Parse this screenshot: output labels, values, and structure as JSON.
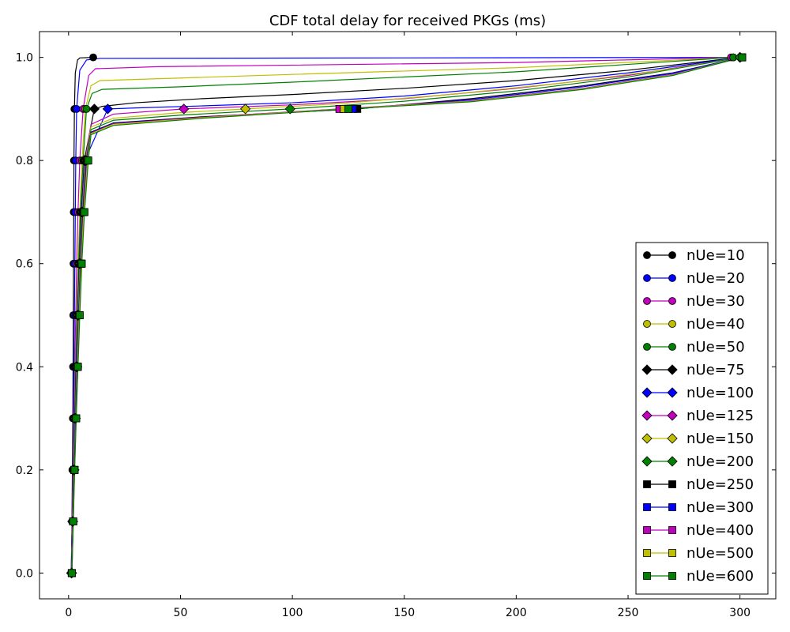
{
  "chart_data": {
    "type": "line",
    "title": "CDF total delay for received PKGs (ms)",
    "xlabel": "",
    "ylabel": "",
    "xlim": [
      -13,
      316
    ],
    "ylim": [
      -0.05,
      1.05
    ],
    "x_ticks": [
      0,
      50,
      100,
      150,
      200,
      250,
      300
    ],
    "x_tick_labels": [
      "0",
      "50",
      "100",
      "150",
      "200",
      "250",
      "300"
    ],
    "y_ticks": [
      0.0,
      0.2,
      0.4,
      0.6,
      0.8,
      1.0
    ],
    "y_tick_labels": [
      "0.0",
      "0.2",
      "0.4",
      "0.6",
      "0.8",
      "1.0"
    ],
    "grid": false,
    "legend_position": "lower-right",
    "series": [
      {
        "name": "nUe=10",
        "color": "#000000",
        "marker": "circle",
        "x": [
          1.2,
          1.5,
          1.7,
          1.9,
          2.0,
          2.1,
          2.2,
          2.3,
          2.4,
          2.6,
          3.0,
          4.0,
          5.0,
          11.0
        ],
        "y": [
          0.0,
          0.1,
          0.2,
          0.3,
          0.4,
          0.5,
          0.6,
          0.7,
          0.8,
          0.9,
          0.97,
          0.995,
          0.999,
          1.0
        ]
      },
      {
        "name": "nUe=20",
        "color": "#0000ff",
        "marker": "circle",
        "x": [
          1.2,
          1.6,
          1.9,
          2.2,
          2.4,
          2.6,
          2.8,
          3.0,
          3.2,
          3.6,
          5.0,
          8.0,
          14.0,
          297
        ],
        "y": [
          0.0,
          0.1,
          0.2,
          0.3,
          0.4,
          0.5,
          0.6,
          0.7,
          0.8,
          0.9,
          0.975,
          0.995,
          0.998,
          1.0
        ]
      },
      {
        "name": "nUe=30",
        "color": "#bf00bf",
        "marker": "circle",
        "x": [
          1.2,
          1.6,
          2.0,
          2.4,
          2.8,
          3.2,
          3.6,
          4.2,
          5.0,
          6.5,
          9.0,
          12.0,
          40,
          100,
          200,
          296
        ],
        "y": [
          0.0,
          0.1,
          0.2,
          0.3,
          0.4,
          0.5,
          0.6,
          0.7,
          0.8,
          0.9,
          0.965,
          0.978,
          0.982,
          0.985,
          0.99,
          1.0
        ]
      },
      {
        "name": "nUe=40",
        "color": "#bfbf00",
        "marker": "circle",
        "x": [
          1.3,
          1.7,
          2.1,
          2.6,
          3.1,
          3.6,
          4.2,
          5.0,
          6.0,
          7.5,
          10.0,
          14.0,
          50,
          100,
          200,
          297
        ],
        "y": [
          0.0,
          0.1,
          0.2,
          0.3,
          0.4,
          0.5,
          0.6,
          0.7,
          0.8,
          0.9,
          0.945,
          0.955,
          0.96,
          0.967,
          0.98,
          1.0
        ]
      },
      {
        "name": "nUe=50",
        "color": "#008000",
        "marker": "circle",
        "x": [
          1.3,
          1.7,
          2.2,
          2.7,
          3.2,
          3.8,
          4.5,
          5.3,
          6.5,
          8.0,
          10.5,
          15.0,
          50,
          100,
          200,
          297
        ],
        "y": [
          0.0,
          0.1,
          0.2,
          0.3,
          0.4,
          0.5,
          0.6,
          0.7,
          0.8,
          0.9,
          0.93,
          0.938,
          0.943,
          0.952,
          0.972,
          1.0
        ]
      },
      {
        "name": "nUe=75",
        "color": "#000000",
        "marker": "diamond",
        "x": [
          1.3,
          1.8,
          2.3,
          2.8,
          3.4,
          4.0,
          4.8,
          5.7,
          7.0,
          11.5,
          15.0,
          30,
          60,
          100,
          150,
          200,
          250,
          300
        ],
        "y": [
          0.0,
          0.1,
          0.2,
          0.3,
          0.4,
          0.5,
          0.6,
          0.7,
          0.8,
          0.9,
          0.905,
          0.912,
          0.92,
          0.928,
          0.94,
          0.955,
          0.975,
          1.0
        ]
      },
      {
        "name": "nUe=100",
        "color": "#0000ff",
        "marker": "diamond",
        "x": [
          1.3,
          1.8,
          2.3,
          2.9,
          3.5,
          4.1,
          4.9,
          5.8,
          7.2,
          17.5,
          30,
          60,
          100,
          150,
          200,
          250,
          300
        ],
        "y": [
          0.0,
          0.1,
          0.2,
          0.3,
          0.4,
          0.5,
          0.6,
          0.7,
          0.8,
          0.9,
          0.902,
          0.906,
          0.912,
          0.925,
          0.945,
          0.97,
          1.0
        ]
      },
      {
        "name": "nUe=125",
        "color": "#bf00bf",
        "marker": "diamond",
        "x": [
          1.3,
          1.8,
          2.4,
          3.0,
          3.6,
          4.2,
          5.0,
          6.0,
          7.4,
          10.0,
          20,
          51.5,
          100,
          150,
          200,
          250,
          300
        ],
        "y": [
          0.0,
          0.1,
          0.2,
          0.3,
          0.4,
          0.5,
          0.6,
          0.7,
          0.8,
          0.87,
          0.89,
          0.9,
          0.908,
          0.92,
          0.94,
          0.965,
          1.0
        ]
      },
      {
        "name": "nUe=150",
        "color": "#bfbf00",
        "marker": "diamond",
        "x": [
          1.4,
          1.9,
          2.4,
          3.0,
          3.7,
          4.3,
          5.1,
          6.1,
          7.6,
          10.0,
          20,
          50,
          79,
          120,
          170,
          220,
          270,
          300
        ],
        "y": [
          0.0,
          0.1,
          0.2,
          0.3,
          0.4,
          0.5,
          0.6,
          0.7,
          0.8,
          0.865,
          0.882,
          0.893,
          0.9,
          0.91,
          0.928,
          0.95,
          0.978,
          1.0
        ]
      },
      {
        "name": "nUe=200",
        "color": "#008000",
        "marker": "diamond",
        "x": [
          1.4,
          1.9,
          2.5,
          3.1,
          3.8,
          4.4,
          5.2,
          6.2,
          7.8,
          10.0,
          20,
          50,
          99,
          150,
          200,
          250,
          300
        ],
        "y": [
          0.0,
          0.1,
          0.2,
          0.3,
          0.4,
          0.5,
          0.6,
          0.7,
          0.8,
          0.86,
          0.878,
          0.888,
          0.9,
          0.915,
          0.935,
          0.962,
          1.0
        ]
      },
      {
        "name": "nUe=250",
        "color": "#000000",
        "marker": "square",
        "x": [
          1.4,
          2.0,
          2.5,
          3.2,
          3.9,
          4.6,
          5.4,
          6.4,
          8.0,
          10.0,
          20,
          60,
          129,
          180,
          230,
          270,
          301
        ],
        "y": [
          0.0,
          0.1,
          0.2,
          0.3,
          0.4,
          0.5,
          0.6,
          0.7,
          0.8,
          0.855,
          0.873,
          0.885,
          0.9,
          0.92,
          0.945,
          0.97,
          1.0
        ]
      },
      {
        "name": "nUe=300",
        "color": "#0000ff",
        "marker": "square",
        "x": [
          1.4,
          2.0,
          2.6,
          3.2,
          3.9,
          4.6,
          5.5,
          6.5,
          8.1,
          10.0,
          20,
          60,
          127,
          180,
          230,
          270,
          301
        ],
        "y": [
          0.0,
          0.1,
          0.2,
          0.3,
          0.4,
          0.5,
          0.6,
          0.7,
          0.8,
          0.854,
          0.872,
          0.884,
          0.9,
          0.918,
          0.943,
          0.969,
          1.0
        ]
      },
      {
        "name": "nUe=400",
        "color": "#bf00bf",
        "marker": "square",
        "x": [
          1.5,
          2.0,
          2.6,
          3.3,
          4.0,
          4.7,
          5.6,
          6.6,
          8.3,
          10.0,
          20,
          60,
          121,
          180,
          230,
          270,
          301
        ],
        "y": [
          0.0,
          0.1,
          0.2,
          0.3,
          0.4,
          0.5,
          0.6,
          0.7,
          0.8,
          0.853,
          0.871,
          0.884,
          0.9,
          0.916,
          0.94,
          0.967,
          1.0
        ]
      },
      {
        "name": "nUe=500",
        "color": "#bfbf00",
        "marker": "square",
        "x": [
          1.5,
          2.1,
          2.7,
          3.4,
          4.1,
          4.8,
          5.7,
          6.8,
          8.5,
          10.0,
          20,
          60,
          123,
          180,
          230,
          270,
          301
        ],
        "y": [
          0.0,
          0.1,
          0.2,
          0.3,
          0.4,
          0.5,
          0.6,
          0.7,
          0.8,
          0.852,
          0.87,
          0.883,
          0.9,
          0.915,
          0.939,
          0.966,
          1.0
        ]
      },
      {
        "name": "nUe=600",
        "color": "#008000",
        "marker": "square",
        "x": [
          1.5,
          2.1,
          2.7,
          3.4,
          4.2,
          5.0,
          5.9,
          7.1,
          8.8,
          10.0,
          20,
          60,
          125,
          180,
          230,
          270,
          301
        ],
        "y": [
          0.0,
          0.1,
          0.2,
          0.3,
          0.4,
          0.5,
          0.6,
          0.7,
          0.8,
          0.85,
          0.868,
          0.882,
          0.9,
          0.914,
          0.938,
          0.965,
          1.0
        ]
      }
    ]
  }
}
